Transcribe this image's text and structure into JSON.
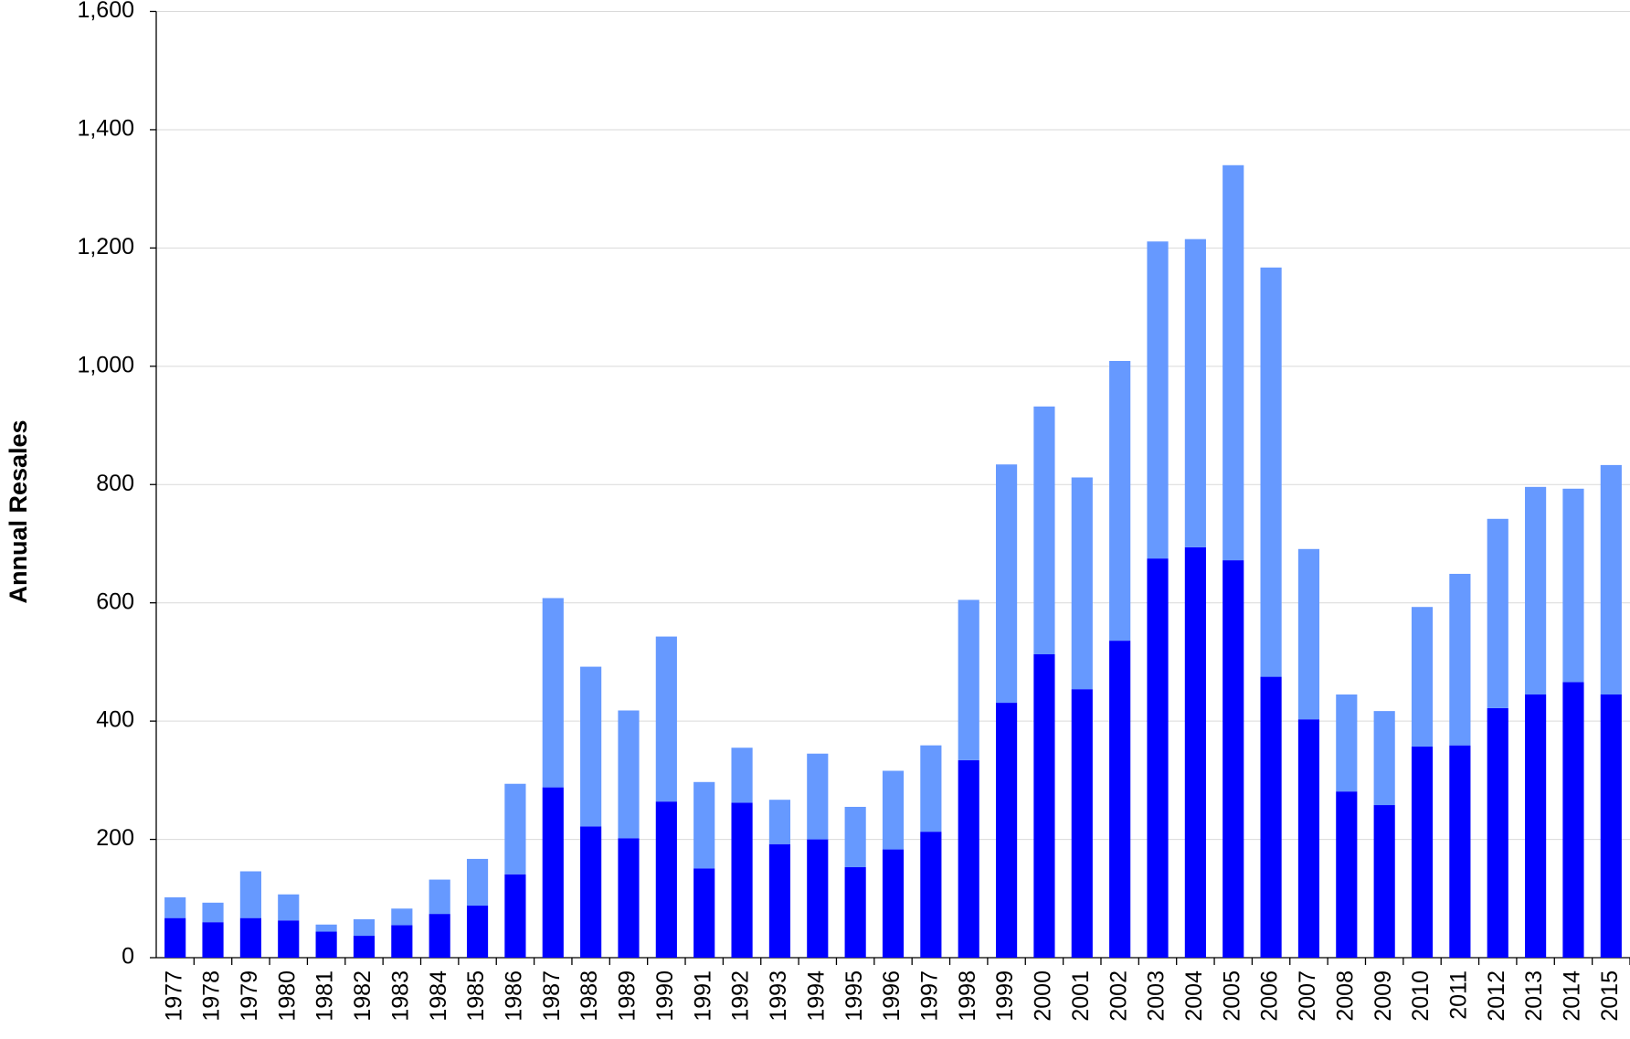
{
  "chart_data": {
    "type": "stacked-bar",
    "y_label": "Annual Resales",
    "categories": [
      "1977",
      "1978",
      "1979",
      "1980",
      "1981",
      "1982",
      "1983",
      "1984",
      "1985",
      "1986",
      "1987",
      "1988",
      "1989",
      "1990",
      "1991",
      "1992",
      "1993",
      "1994",
      "1995",
      "1996",
      "1997",
      "1998",
      "1999",
      "2000",
      "2001",
      "2002",
      "2003",
      "2004",
      "2005",
      "2006",
      "2007",
      "2008",
      "2009",
      "2010",
      "2011",
      "2012",
      "2013",
      "2014",
      "2015"
    ],
    "series": [
      {
        "color": "#0000ff",
        "values": [
          67,
          60,
          67,
          63,
          44,
          37,
          55,
          74,
          88,
          141,
          288,
          222,
          202,
          264,
          151,
          262,
          192,
          200,
          153,
          183,
          213,
          334,
          431,
          513,
          454,
          536,
          675,
          694,
          672,
          475,
          403,
          281,
          258,
          357,
          359,
          422,
          445,
          466,
          445
        ]
      },
      {
        "color": "#6699ff",
        "values": [
          35,
          33,
          79,
          44,
          12,
          28,
          28,
          58,
          79,
          153,
          320,
          270,
          216,
          279,
          146,
          93,
          75,
          145,
          102,
          133,
          146,
          271,
          403,
          419,
          358,
          473,
          536,
          521,
          668,
          692,
          288,
          164,
          159,
          236,
          290,
          320,
          351,
          327,
          388
        ]
      }
    ],
    "ylim": [
      0,
      1600
    ],
    "yticks": [
      0,
      {
        "value": 200,
        "label": "200"
      },
      {
        "value": 400,
        "label": "400"
      },
      {
        "value": 600,
        "label": "600"
      },
      {
        "value": 800,
        "label": "800"
      },
      {
        "value": 1000,
        "label": "1,000"
      },
      {
        "value": 1200,
        "label": "1,200"
      },
      {
        "value": 1400,
        "label": "1,400"
      },
      {
        "value": 1600,
        "label": "1,600"
      }
    ],
    "grid": true
  }
}
